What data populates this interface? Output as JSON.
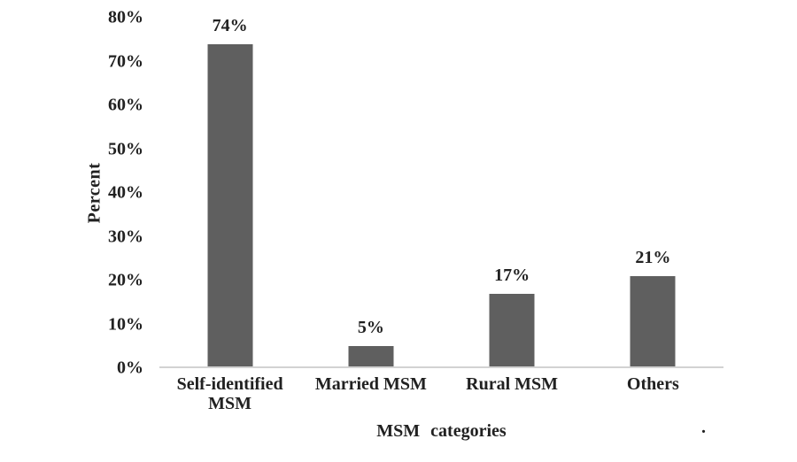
{
  "chart_data": {
    "type": "bar",
    "categories": [
      "Self-identified MSM",
      "Married MSM",
      "Rural MSM",
      "Others"
    ],
    "values": [
      74,
      5,
      17,
      21
    ],
    "value_labels": [
      "74%",
      "5%",
      "17%",
      "21%"
    ],
    "title": "",
    "xlabel": "MSM categories",
    "ylabel": "Percent",
    "ylim": [
      0,
      80
    ],
    "ytick_step": 10,
    "yticks": [
      "0%",
      "10%",
      "20%",
      "30%",
      "40%",
      "50%",
      "60%",
      "70%",
      "80%"
    ],
    "grid": false,
    "legend": false,
    "bar_color": "#5f5f5f",
    "axis_line_color": "#d2d2d2",
    "text_color": "#212121"
  },
  "stray_mark": "."
}
